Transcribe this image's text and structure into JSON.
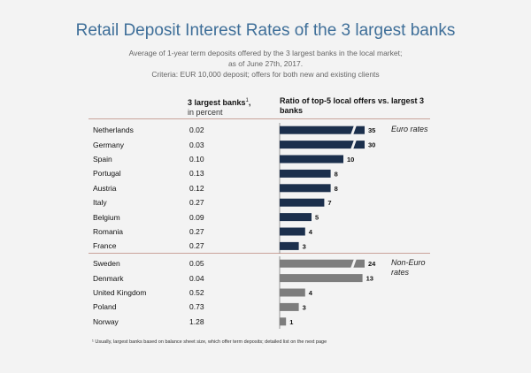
{
  "header": {
    "title": "Retail Deposit Interest Rates of the 3 largest banks",
    "subtitle_lines": [
      "Average of 1-year term deposits offered by the 3 largest banks in the local market;",
      "as of June 27th, 2017.",
      "Criteria: EUR 10,000 deposit; offers for both new and existing clients"
    ]
  },
  "columns": {
    "rates_title": "3 largest banks",
    "rates_superscript": "1",
    "rates_unit": "in percent",
    "ratio_title_line1": "Ratio of top-5 local offers vs. largest 3",
    "ratio_title_line2": "banks"
  },
  "notes": {
    "euro": "Euro rates",
    "noneuro_line1": "Non-Euro",
    "noneuro_line2": "rates"
  },
  "footnote": "¹ Usually, largest banks based on balance sheet size, which offer term deposits; detailed list on the next page",
  "chart_data": {
    "type": "bar",
    "title": "Retail Deposit Interest Rates of the 3 largest banks",
    "groups": [
      {
        "name": "Euro rates",
        "color": "#1b2f4c",
        "rows": [
          {
            "country": "Netherlands",
            "rate": "0.02",
            "ratio": 35,
            "broken": true
          },
          {
            "country": "Germany",
            "rate": "0.03",
            "ratio": 30,
            "broken": true
          },
          {
            "country": "Spain",
            "rate": "0.10",
            "ratio": 10
          },
          {
            "country": "Portugal",
            "rate": "0.13",
            "ratio": 8
          },
          {
            "country": "Austria",
            "rate": "0.12",
            "ratio": 8
          },
          {
            "country": "Italy",
            "rate": "0.27",
            "ratio": 7
          },
          {
            "country": "Belgium",
            "rate": "0.09",
            "ratio": 5
          },
          {
            "country": "Romania",
            "rate": "0.27",
            "ratio": 4
          },
          {
            "country": "France",
            "rate": "0.27",
            "ratio": 3
          }
        ]
      },
      {
        "name": "Non-Euro rates",
        "color": "#7d7d7d",
        "rows": [
          {
            "country": "Sweden",
            "rate": "0.05",
            "ratio": 24,
            "broken": true
          },
          {
            "country": "Denmark",
            "rate": "0.04",
            "ratio": 13
          },
          {
            "country": "United Kingdom",
            "rate": "0.52",
            "ratio": 4
          },
          {
            "country": "Poland",
            "rate": "0.73",
            "ratio": 3
          },
          {
            "country": "Norway",
            "rate": "1.28",
            "ratio": 1
          }
        ]
      }
    ]
  }
}
